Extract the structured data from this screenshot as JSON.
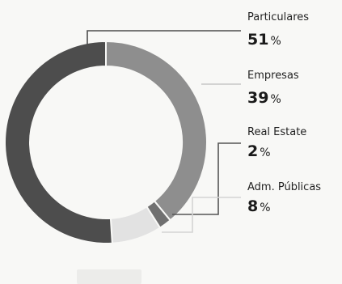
{
  "chart_data": {
    "type": "pie",
    "donut": true,
    "title": "",
    "categories": [
      "Particulares",
      "Empresas",
      "Real Estate",
      "Adm. Públicas"
    ],
    "values": [
      51,
      39,
      2,
      8
    ],
    "value_labels": [
      "51",
      "39",
      "2",
      "8"
    ],
    "unit": "%",
    "colors": [
      "#4d4d4d",
      "#8e8e8e",
      "#707070",
      "#e2e2e2"
    ],
    "start": "top, clockwise (Particulares ends at 12 o'clock)",
    "legend_placement": "right"
  }
}
